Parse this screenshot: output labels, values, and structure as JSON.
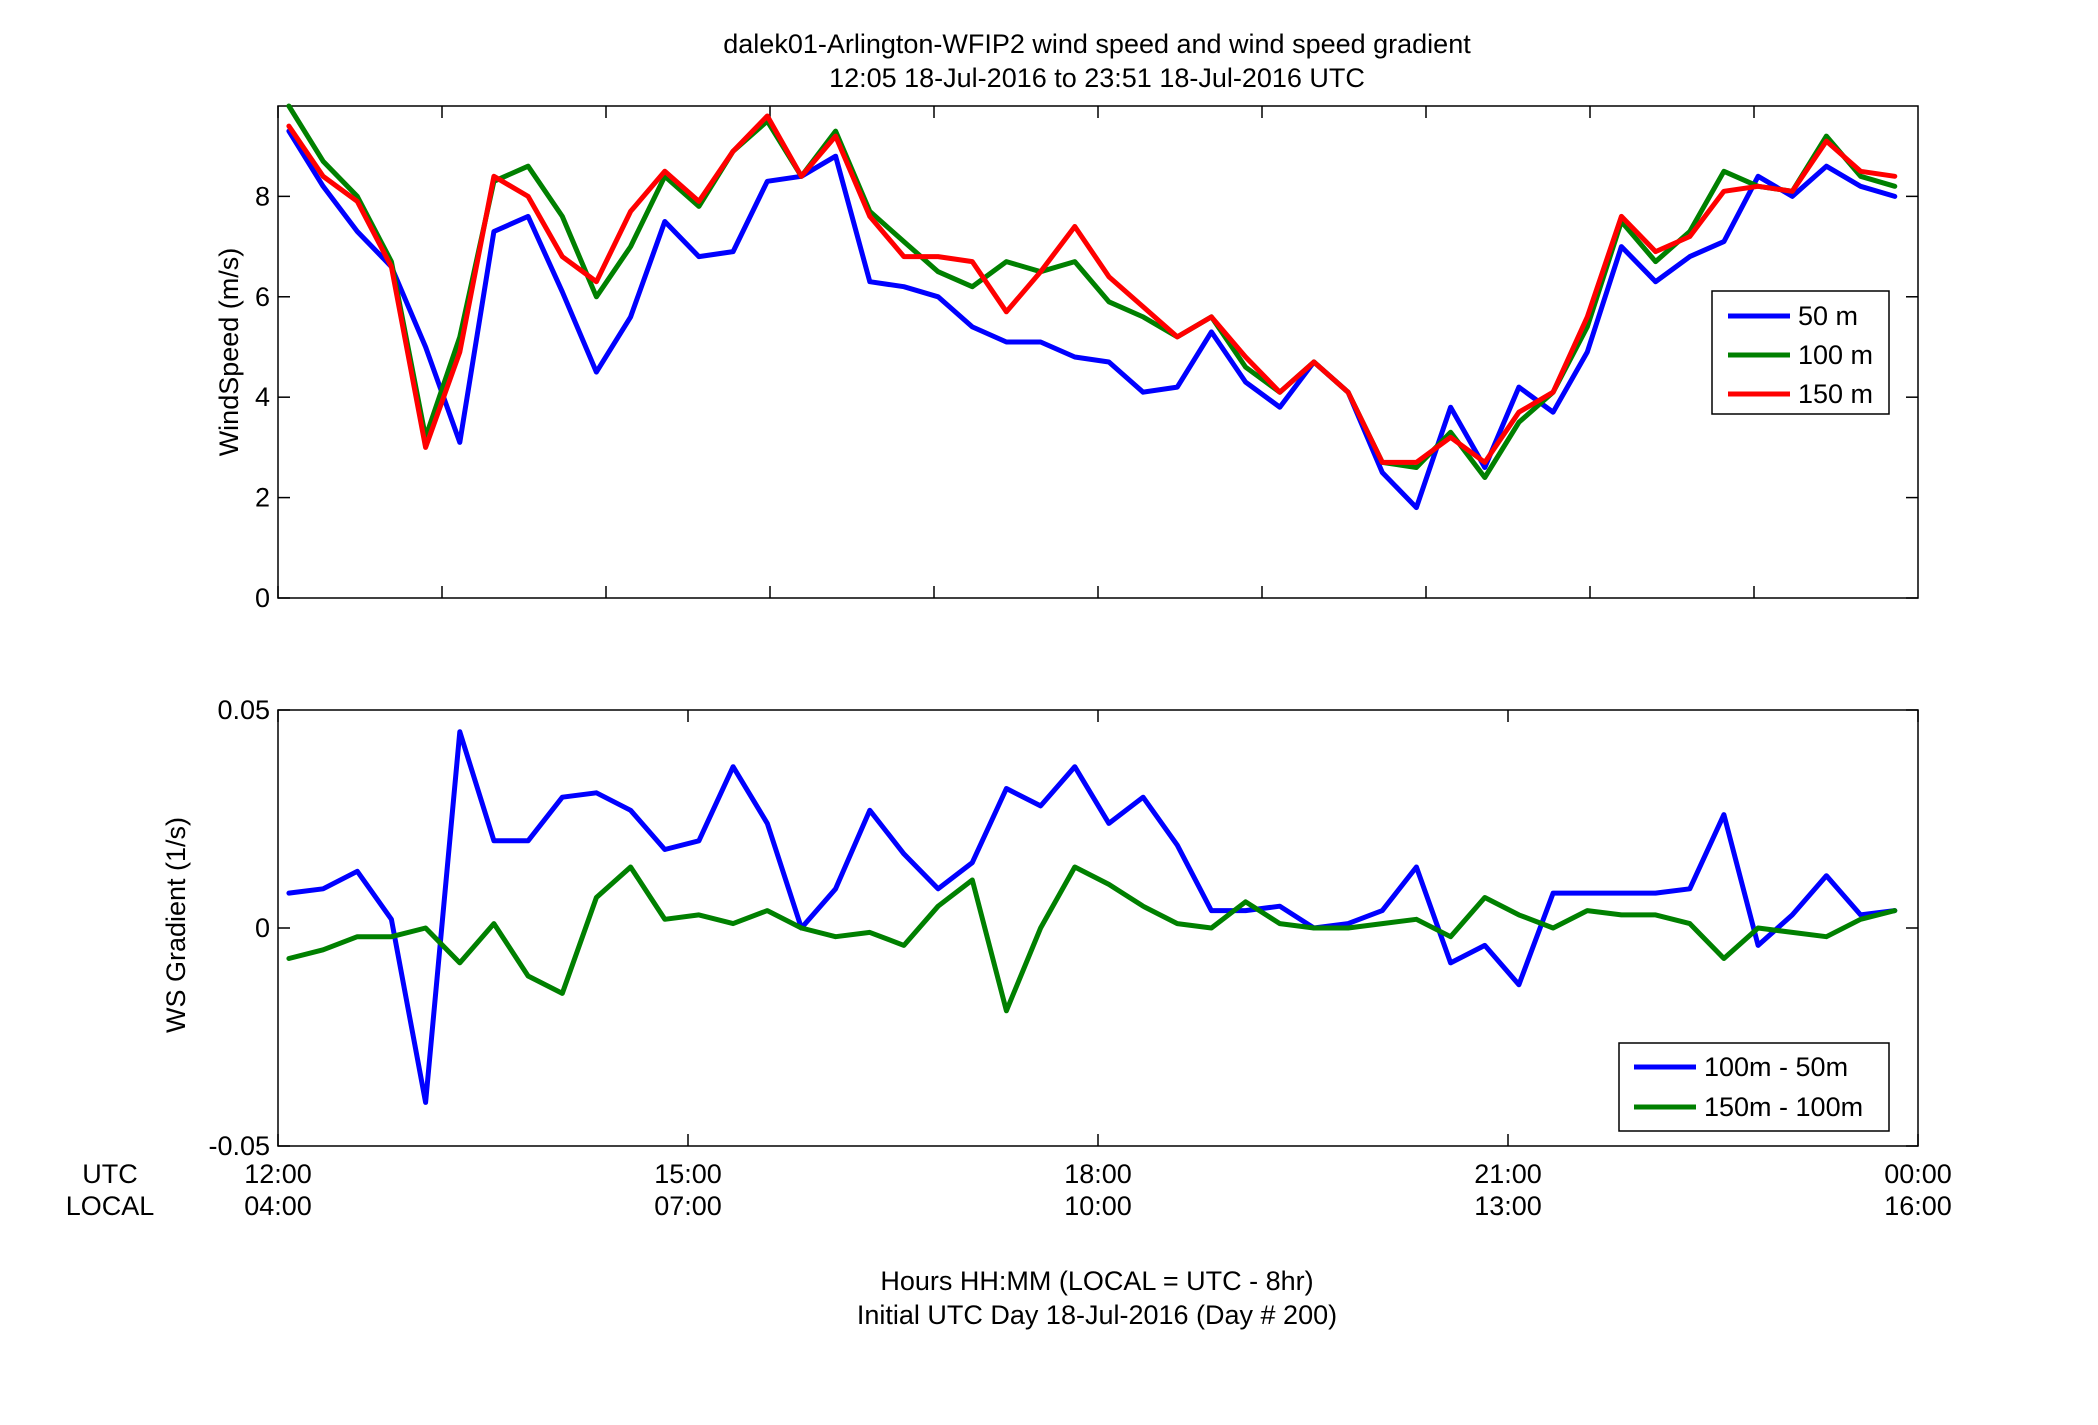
{
  "figure": {
    "title_line1": "dalek01-Arlington-WFIP2  wind speed and wind speed gradient",
    "title_line2": "12:05 18-Jul-2016 to 23:51 18-Jul-2016  UTC",
    "row_label_utc": "UTC",
    "row_label_local": "LOCAL",
    "xlabel_line1": "Hours HH:MM  (LOCAL = UTC - 8hr)",
    "xlabel_line2": "Initial UTC Day 18-Jul-2016 (Day # 200)",
    "utc_ticks": [
      "12:00",
      "15:00",
      "18:00",
      "21:00",
      "00:00"
    ],
    "local_ticks": [
      "04:00",
      "07:00",
      "10:00",
      "13:00",
      "16:00"
    ],
    "colors": {
      "blue": "#0000ff",
      "green": "#008000",
      "red": "#ff0000"
    }
  },
  "chart_data": [
    {
      "type": "line",
      "ylabel": "WindSpeed (m/s)",
      "xlim": [
        12,
        24
      ],
      "ylim": [
        0,
        9.8
      ],
      "yticks": [
        0,
        2,
        4,
        6,
        8
      ],
      "ytick_labels": [
        "0",
        "2",
        "4",
        "6",
        "8"
      ],
      "xticks": [
        12,
        13.2,
        14.4,
        15.6,
        16.8,
        18,
        19.2,
        20.4,
        21.6,
        22.8
      ],
      "grid": false,
      "legend_position": "right",
      "x": [
        12.08,
        12.33,
        12.58,
        12.83,
        13.08,
        13.33,
        13.58,
        13.83,
        14.08,
        14.33,
        14.58,
        14.83,
        15.08,
        15.33,
        15.58,
        15.83,
        16.08,
        16.33,
        16.58,
        16.83,
        17.08,
        17.33,
        17.58,
        17.83,
        18.08,
        18.33,
        18.58,
        18.83,
        19.08,
        19.33,
        19.58,
        19.83,
        20.08,
        20.33,
        20.58,
        20.83,
        21.08,
        21.33,
        21.58,
        21.83,
        22.08,
        22.33,
        22.58,
        22.83,
        23.08,
        23.33,
        23.58,
        23.83
      ],
      "series": [
        {
          "name": "50 m",
          "color": "#0000ff",
          "values": [
            9.3,
            8.2,
            7.3,
            6.6,
            5.0,
            3.1,
            7.3,
            7.6,
            6.1,
            4.5,
            5.6,
            7.5,
            6.8,
            6.9,
            8.3,
            8.4,
            8.8,
            6.3,
            6.2,
            6.0,
            5.4,
            5.1,
            5.1,
            4.8,
            4.7,
            4.1,
            4.2,
            5.3,
            4.3,
            3.8,
            4.7,
            4.1,
            2.5,
            1.8,
            3.8,
            2.6,
            4.2,
            3.7,
            4.9,
            7.0,
            6.3,
            6.8,
            7.1,
            8.4,
            8.0,
            8.6,
            8.2,
            8.0
          ]
        },
        {
          "name": "100 m",
          "color": "#008000",
          "values": [
            9.8,
            8.7,
            8.0,
            6.7,
            3.2,
            5.2,
            8.3,
            8.6,
            7.6,
            6.0,
            7.0,
            8.4,
            7.8,
            8.9,
            9.5,
            8.4,
            9.3,
            7.7,
            7.1,
            6.5,
            6.2,
            6.7,
            6.5,
            6.7,
            5.9,
            5.6,
            5.2,
            5.6,
            4.6,
            4.1,
            4.7,
            4.1,
            2.7,
            2.6,
            3.3,
            2.4,
            3.5,
            4.1,
            5.4,
            7.5,
            6.7,
            7.3,
            8.5,
            8.2,
            8.1,
            9.2,
            8.4,
            8.2
          ]
        },
        {
          "name": "150 m",
          "color": "#ff0000",
          "values": [
            9.4,
            8.4,
            7.9,
            6.6,
            3.0,
            4.9,
            8.4,
            8.0,
            6.8,
            6.3,
            7.7,
            8.5,
            7.9,
            8.9,
            9.6,
            8.4,
            9.2,
            7.6,
            6.8,
            6.8,
            6.7,
            5.7,
            6.5,
            7.4,
            6.4,
            5.8,
            5.2,
            5.6,
            4.8,
            4.1,
            4.7,
            4.1,
            2.7,
            2.7,
            3.2,
            2.7,
            3.7,
            4.1,
            5.6,
            7.6,
            6.9,
            7.2,
            8.1,
            8.2,
            8.1,
            9.1,
            8.5,
            8.4
          ]
        }
      ]
    },
    {
      "type": "line",
      "ylabel": "WS Gradient (1/s)",
      "xlim": [
        12,
        24
      ],
      "ylim": [
        -0.05,
        0.05
      ],
      "yticks": [
        -0.05,
        0,
        0.05
      ],
      "ytick_labels": [
        "-0.05",
        "0",
        "0.05"
      ],
      "xticks": [
        12,
        15,
        18,
        21,
        24
      ],
      "grid": false,
      "legend_position": "bottom-right",
      "x": [
        12.08,
        12.33,
        12.58,
        12.83,
        13.08,
        13.33,
        13.58,
        13.83,
        14.08,
        14.33,
        14.58,
        14.83,
        15.08,
        15.33,
        15.58,
        15.83,
        16.08,
        16.33,
        16.58,
        16.83,
        17.08,
        17.33,
        17.58,
        17.83,
        18.08,
        18.33,
        18.58,
        18.83,
        19.08,
        19.33,
        19.58,
        19.83,
        20.08,
        20.33,
        20.58,
        20.83,
        21.08,
        21.33,
        21.58,
        21.83,
        22.08,
        22.33,
        22.58,
        22.83,
        23.08,
        23.33,
        23.58,
        23.83
      ],
      "series": [
        {
          "name": "100m - 50m",
          "color": "#0000ff",
          "values": [
            0.008,
            0.009,
            0.013,
            0.002,
            -0.04,
            0.045,
            0.02,
            0.02,
            0.03,
            0.031,
            0.027,
            0.018,
            0.02,
            0.037,
            0.024,
            0.0,
            0.009,
            0.027,
            0.017,
            0.009,
            0.015,
            0.032,
            0.028,
            0.037,
            0.024,
            0.03,
            0.019,
            0.004,
            0.004,
            0.005,
            0.0,
            0.001,
            0.004,
            0.014,
            -0.008,
            -0.004,
            -0.013,
            0.008,
            0.008,
            0.008,
            0.008,
            0.009,
            0.026,
            -0.004,
            0.003,
            0.012,
            0.003,
            0.004
          ]
        },
        {
          "name": "150m - 100m",
          "color": "#008000",
          "values": [
            -0.007,
            -0.005,
            -0.002,
            -0.002,
            0.0,
            -0.008,
            0.001,
            -0.011,
            -0.015,
            0.007,
            0.014,
            0.002,
            0.003,
            0.001,
            0.004,
            0.0,
            -0.002,
            -0.001,
            -0.004,
            0.005,
            0.011,
            -0.019,
            0.0,
            0.014,
            0.01,
            0.005,
            0.001,
            0.0,
            0.006,
            0.001,
            0.0,
            0.0,
            0.001,
            0.002,
            -0.002,
            0.007,
            0.003,
            0.0,
            0.004,
            0.003,
            0.003,
            0.001,
            -0.007,
            0.0,
            -0.001,
            -0.002,
            0.002,
            0.004
          ]
        }
      ]
    }
  ]
}
